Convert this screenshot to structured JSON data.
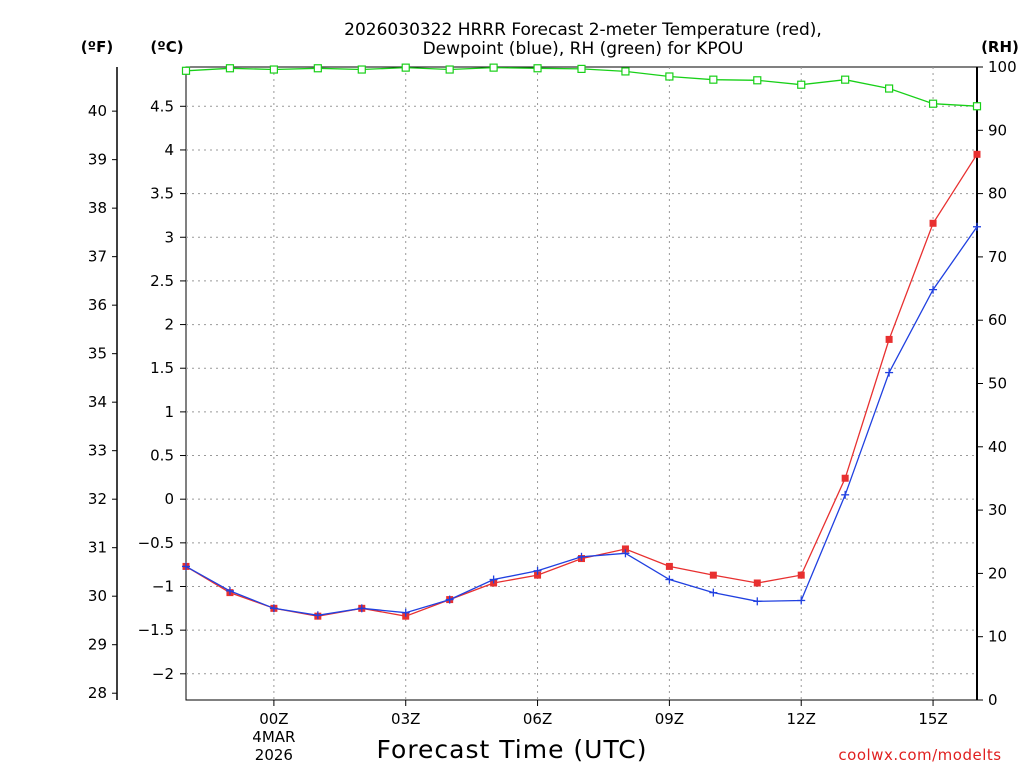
{
  "chart_data": {
    "type": "line",
    "title_line1": "2026030322 HRRR Forecast 2-meter Temperature (red),",
    "title_line2": "Dewpoint (blue), RH (green) for KPOU",
    "xlabel": "Forecast Time (UTC)",
    "credit": "coolwx.com/modelts",
    "left_outer_unit": "(ºF)",
    "left_inner_unit": "(ºC)",
    "right_unit": "(RH)",
    "x": [
      -2,
      -1,
      0,
      1,
      2,
      3,
      4,
      5,
      6,
      7,
      8,
      9,
      10,
      11,
      12,
      13,
      14,
      15,
      16
    ],
    "x_range": [
      -2,
      16
    ],
    "x_ticks": [
      {
        "x": 0,
        "label": "00Z",
        "sub1": "4MAR",
        "sub2": "2026"
      },
      {
        "x": 3,
        "label": "03Z"
      },
      {
        "x": 6,
        "label": "06Z"
      },
      {
        "x": 9,
        "label": "09Z"
      },
      {
        "x": 12,
        "label": "12Z"
      },
      {
        "x": 15,
        "label": "15Z"
      }
    ],
    "celsius_range": [
      -2.3,
      4.95
    ],
    "celsius_ticks": [
      "4.5",
      "4",
      "3.5",
      "3",
      "2.5",
      "2",
      "1.5",
      "1",
      "0.5",
      "0",
      "-0.5",
      "-1",
      "-1.5",
      "-2"
    ],
    "fahrenheit_ticks": [
      "40",
      "39",
      "38",
      "37",
      "36",
      "35",
      "34",
      "33",
      "32",
      "31",
      "30",
      "29",
      "28"
    ],
    "rh_range": [
      0,
      100
    ],
    "rh_ticks": [
      "100",
      "90",
      "80",
      "70",
      "60",
      "50",
      "40",
      "30",
      "20",
      "10",
      "0"
    ],
    "series": [
      {
        "name": "Temperature",
        "unit": "C",
        "color": "#e83030",
        "marker": "filled-square",
        "values": [
          -0.77,
          -1.07,
          -1.25,
          -1.34,
          -1.25,
          -1.34,
          -1.15,
          -0.96,
          -0.87,
          -0.68,
          -0.57,
          -0.77,
          -0.87,
          -0.96,
          -0.87,
          0.24,
          1.83,
          3.16,
          3.95
        ]
      },
      {
        "name": "Dewpoint",
        "unit": "C",
        "color": "#2040e0",
        "marker": "plus",
        "values": [
          -0.77,
          -1.05,
          -1.25,
          -1.33,
          -1.25,
          -1.3,
          -1.15,
          -0.92,
          -0.82,
          -0.66,
          -0.62,
          -0.92,
          -1.07,
          -1.17,
          -1.16,
          0.05,
          1.45,
          2.4,
          3.12
        ]
      },
      {
        "name": "RH",
        "unit": "%",
        "color": "#18d018",
        "marker": "open-square",
        "values": [
          99.4,
          99.8,
          99.6,
          99.8,
          99.6,
          99.9,
          99.6,
          99.9,
          99.8,
          99.7,
          99.3,
          98.5,
          98.0,
          97.9,
          97.2,
          98.0,
          96.6,
          94.2,
          93.8
        ]
      }
    ]
  }
}
